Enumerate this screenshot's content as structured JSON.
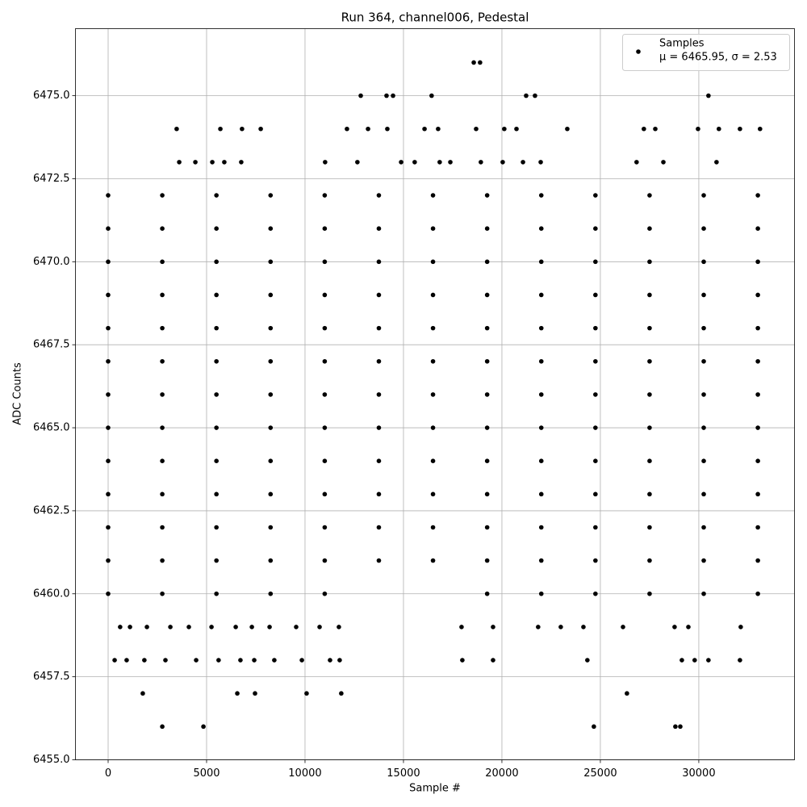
{
  "chart_data": {
    "type": "scatter",
    "title": "Run 364, channel006, Pedestal",
    "x_label": "Sample #",
    "y_label": "ADC Counts",
    "legend_note": "μ = 6465.95, σ = 2.53",
    "legend": "upper right",
    "grid": true,
    "xlim": [
      -1660,
      34860
    ],
    "ylim": [
      6455,
      6477.02
    ],
    "xticks": [
      0,
      5000,
      10000,
      15000,
      20000,
      25000,
      30000
    ],
    "yticks": [
      {
        "value": 6455,
        "label": "6455.0"
      },
      {
        "value": 6457.5,
        "label": "6457.5"
      },
      {
        "value": 6460,
        "label": "6460.0"
      },
      {
        "value": 6462.5,
        "label": "6462.5"
      },
      {
        "value": 6465,
        "label": "6465.0"
      },
      {
        "value": 6467.5,
        "label": "6467.5"
      },
      {
        "value": 6470,
        "label": "6470.0"
      },
      {
        "value": 6472.5,
        "label": "6472.5"
      },
      {
        "value": 6475,
        "label": "6475.0"
      }
    ],
    "series": [
      {
        "name": "Samples",
        "color": "#000000",
        "x": [
          18570,
          18890,
          12830,
          14140,
          14470,
          16430,
          21230,
          21680,
          30490,
          3480,
          5700,
          6800,
          7750,
          12130,
          13200,
          14180,
          16070,
          16760,
          18690,
          20120,
          20740,
          23320,
          27210,
          27790,
          29960,
          31020,
          32090,
          33110,
          3610,
          4430,
          5290,
          5900,
          6760,
          11020,
          12660,
          14880,
          15570,
          16840,
          17380,
          18930,
          20040,
          21070,
          21970,
          26840,
          28200,
          30900,
          610,
          1110,
          1970,
          3160,
          4100,
          5250,
          6480,
          7300,
          8200,
          9550,
          10740,
          11720,
          17950,
          19550,
          21840,
          22990,
          24140,
          26150,
          28770,
          29470,
          32130,
          330,
          940,
          1840,
          2910,
          4470,
          5610,
          6720,
          7420,
          8440,
          9840,
          11270,
          11760,
          17990,
          19550,
          24340,
          29140,
          29790,
          30490,
          32090,
          1760,
          6560,
          7460,
          10080,
          11840,
          26350,
          2750,
          4840,
          24670,
          28810,
          29060,
          0,
          2750,
          5500,
          8250,
          11000,
          19250,
          22000,
          24750,
          27500,
          30250,
          33000,
          0,
          2750,
          5500,
          8250,
          11000,
          13750,
          16500,
          19250,
          22000,
          24750,
          27500,
          30250,
          33000,
          0,
          2750,
          5500,
          8250,
          11000,
          13750,
          16500,
          19250,
          22000,
          24750,
          27500,
          30250,
          33000,
          0,
          2750,
          5500,
          8250,
          11000,
          13750,
          16500,
          19250,
          22000,
          24750,
          27500,
          30250,
          33000,
          0,
          2750,
          5500,
          8250,
          11000,
          13750,
          16500,
          19250,
          22000,
          24750,
          27500,
          30250,
          33000,
          0,
          2750,
          5500,
          8250,
          11000,
          13750,
          16500,
          19250,
          22000,
          24750,
          27500,
          30250,
          33000,
          0,
          2750,
          5500,
          8250,
          11000,
          13750,
          16500,
          19250,
          22000,
          24750,
          27500,
          30250,
          33000,
          0,
          2750,
          5500,
          8250,
          11000,
          13750,
          16500,
          19250,
          22000,
          24750,
          27500,
          30250,
          33000,
          0,
          2750,
          5500,
          8250,
          11000,
          13750,
          16500,
          19250,
          22000,
          24750,
          27500,
          30250,
          33000,
          0,
          2750,
          5500,
          8250,
          11000,
          13750,
          16500,
          19250,
          22000,
          24750,
          27500,
          30250,
          33000,
          0,
          2750,
          5500,
          8250,
          11000,
          13750,
          16500,
          19250,
          22000,
          24750,
          27500,
          30250,
          33000,
          0,
          2750,
          5500,
          8250,
          11000,
          13750,
          16500,
          19250,
          22000,
          24750,
          27500,
          30250,
          33000,
          0,
          2750,
          5500,
          8250,
          11000,
          13750,
          16500,
          19250,
          22000,
          24750,
          27500,
          30250,
          33000
        ],
        "values": [
          6476,
          6476,
          6475,
          6475,
          6475,
          6475,
          6475,
          6475,
          6475,
          6474,
          6474,
          6474,
          6474,
          6474,
          6474,
          6474,
          6474,
          6474,
          6474,
          6474,
          6474,
          6474,
          6474,
          6474,
          6474,
          6474,
          6474,
          6474,
          6473,
          6473,
          6473,
          6473,
          6473,
          6473,
          6473,
          6473,
          6473,
          6473,
          6473,
          6473,
          6473,
          6473,
          6473,
          6473,
          6473,
          6473,
          6459,
          6459,
          6459,
          6459,
          6459,
          6459,
          6459,
          6459,
          6459,
          6459,
          6459,
          6459,
          6459,
          6459,
          6459,
          6459,
          6459,
          6459,
          6459,
          6459,
          6459,
          6458,
          6458,
          6458,
          6458,
          6458,
          6458,
          6458,
          6458,
          6458,
          6458,
          6458,
          6458,
          6458,
          6458,
          6458,
          6458,
          6458,
          6458,
          6458,
          6457,
          6457,
          6457,
          6457,
          6457,
          6457,
          6456,
          6456,
          6456,
          6456,
          6456,
          6460,
          6460,
          6460,
          6460,
          6460,
          6460,
          6460,
          6460,
          6460,
          6460,
          6460,
          6461,
          6461,
          6461,
          6461,
          6461,
          6461,
          6461,
          6461,
          6461,
          6461,
          6461,
          6461,
          6461,
          6462,
          6462,
          6462,
          6462,
          6462,
          6462,
          6462,
          6462,
          6462,
          6462,
          6462,
          6462,
          6462,
          6463,
          6463,
          6463,
          6463,
          6463,
          6463,
          6463,
          6463,
          6463,
          6463,
          6463,
          6463,
          6463,
          6464,
          6464,
          6464,
          6464,
          6464,
          6464,
          6464,
          6464,
          6464,
          6464,
          6464,
          6464,
          6464,
          6465,
          6465,
          6465,
          6465,
          6465,
          6465,
          6465,
          6465,
          6465,
          6465,
          6465,
          6465,
          6465,
          6466,
          6466,
          6466,
          6466,
          6466,
          6466,
          6466,
          6466,
          6466,
          6466,
          6466,
          6466,
          6466,
          6467,
          6467,
          6467,
          6467,
          6467,
          6467,
          6467,
          6467,
          6467,
          6467,
          6467,
          6467,
          6467,
          6468,
          6468,
          6468,
          6468,
          6468,
          6468,
          6468,
          6468,
          6468,
          6468,
          6468,
          6468,
          6468,
          6469,
          6469,
          6469,
          6469,
          6469,
          6469,
          6469,
          6469,
          6469,
          6469,
          6469,
          6469,
          6469,
          6470,
          6470,
          6470,
          6470,
          6470,
          6470,
          6470,
          6470,
          6470,
          6470,
          6470,
          6470,
          6470,
          6471,
          6471,
          6471,
          6471,
          6471,
          6471,
          6471,
          6471,
          6471,
          6471,
          6471,
          6471,
          6471,
          6472,
          6472,
          6472,
          6472,
          6472,
          6472,
          6472,
          6472,
          6472,
          6472,
          6472,
          6472,
          6472
        ]
      }
    ]
  }
}
